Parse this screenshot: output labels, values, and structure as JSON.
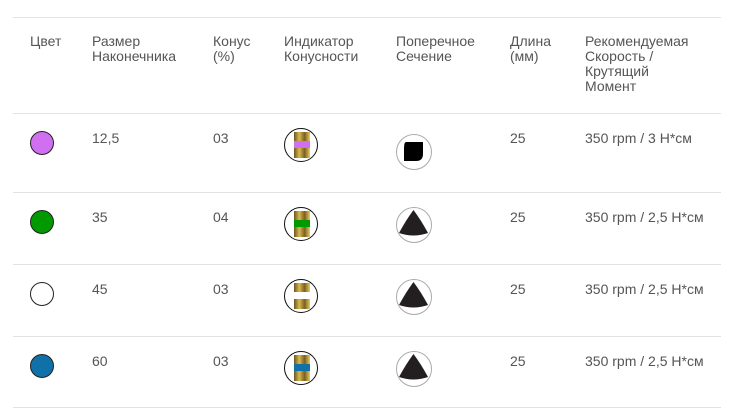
{
  "headers": [
    "Цвет",
    "Размер\nНаконечника",
    "Конус\n(%)",
    "Индикатор\nКонусности",
    "Поперечное\nСечение",
    "Длина\n(мм)",
    "Рекомендуемая\nСкорость /\nКрутящий\nМомент"
  ],
  "rows": [
    {
      "color": "#d070f0",
      "size": "12,5",
      "taper": "03",
      "indicator_color": "#d070f0",
      "section": "square",
      "length": "25",
      "speed": "350 rpm / 3 Н*см"
    },
    {
      "color": "#009900",
      "size": "35",
      "taper": "04",
      "indicator_color": "#009900",
      "section": "triangle",
      "length": "25",
      "speed": "350 rpm / 2,5 Н*см"
    },
    {
      "color": "#ffffff",
      "size": "45",
      "taper": "03",
      "indicator_color": "#ffffff",
      "section": "triangle",
      "length": "25",
      "speed": "350 rpm / 2,5 Н*см"
    },
    {
      "color": "#1070a8",
      "size": "60",
      "taper": "03",
      "indicator_color": "#1070a8",
      "section": "triangle",
      "length": "25",
      "speed": "350 rpm / 2,5 Н*см"
    }
  ]
}
